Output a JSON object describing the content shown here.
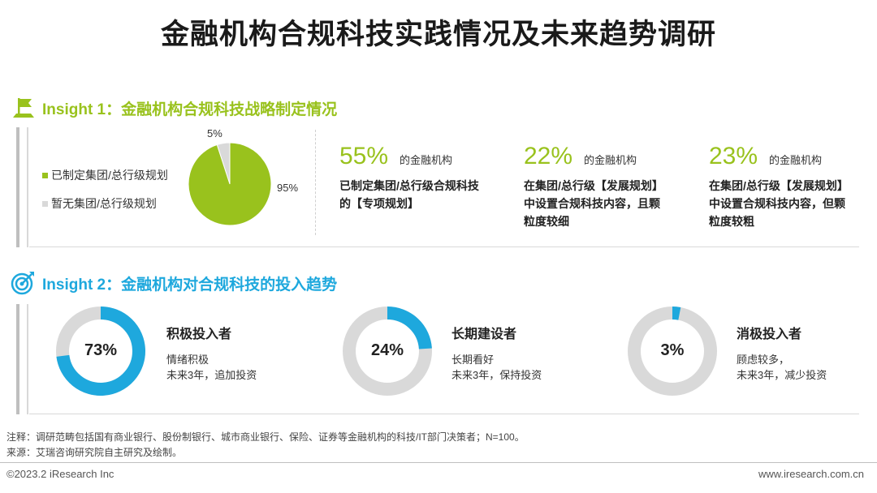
{
  "title": "金融机构合规科技实践情况及未来趋势调研",
  "colors": {
    "green": "#99c21d",
    "blue": "#1ea8dd",
    "gray": "#d9d9d9"
  },
  "insight1": {
    "title": "Insight 1：金融机构合规科技战略制定情况",
    "icon": "flag-icon",
    "legend": [
      "已制定集团/总行级规划",
      "暂无集团/总行级规划"
    ],
    "stats": [
      {
        "value": "55%",
        "unit": "的金融机构",
        "lines": [
          "已制定集团/总行级合规科技",
          "的【专项规划】"
        ]
      },
      {
        "value": "22%",
        "unit": "的金融机构",
        "lines": [
          "在集团/总行级【发展规划】",
          "中设置合规科技内容，且颗",
          "粒度较细"
        ]
      },
      {
        "value": "23%",
        "unit": "的金融机构",
        "lines": [
          "在集团/总行级【发展规划】",
          "中设置合规科技内容，但颗",
          "粒度较粗"
        ]
      }
    ]
  },
  "insight2": {
    "title": "Insight 2：金融机构对合规科技的投入趋势",
    "icon": "target-icon",
    "items": [
      {
        "pct": "73%",
        "value": 73,
        "title": "积极投入者",
        "lines": [
          "情绪积极",
          "未来3年，追加投资"
        ]
      },
      {
        "pct": "24%",
        "value": 24,
        "title": "长期建设者",
        "lines": [
          "长期看好",
          "未来3年，保持投资"
        ]
      },
      {
        "pct": "3%",
        "value": 3,
        "title": "消极投入者",
        "lines": [
          "顾虑较多，",
          "未来3年，减少投资"
        ]
      }
    ]
  },
  "chart_data": [
    {
      "type": "pie",
      "categories": [
        "已制定集团/总行级规划",
        "暂无集团/总行级规划"
      ],
      "values": [
        95,
        5
      ],
      "labels": [
        "95%",
        "5%"
      ],
      "colors": [
        "#99c21d",
        "#d9d9d9"
      ],
      "legend": "left"
    },
    {
      "type": "pie",
      "variant": "donut",
      "categories": [
        "积极投入者",
        "长期建设者",
        "消极投入者"
      ],
      "values": [
        73,
        24,
        3
      ],
      "labels": [
        "73%",
        "24%",
        "3%"
      ]
    }
  ],
  "notes": {
    "note": "注释：调研范畴包括国有商业银行、股份制银行、城市商业银行、保险、证券等金融机构的科技/IT部门决策者；N=100。",
    "source": "来源：艾瑞咨询研究院自主研究及绘制。"
  },
  "footer": {
    "copyright": "©2023.2 iResearch Inc",
    "website": "www.iresearch.com.cn"
  }
}
